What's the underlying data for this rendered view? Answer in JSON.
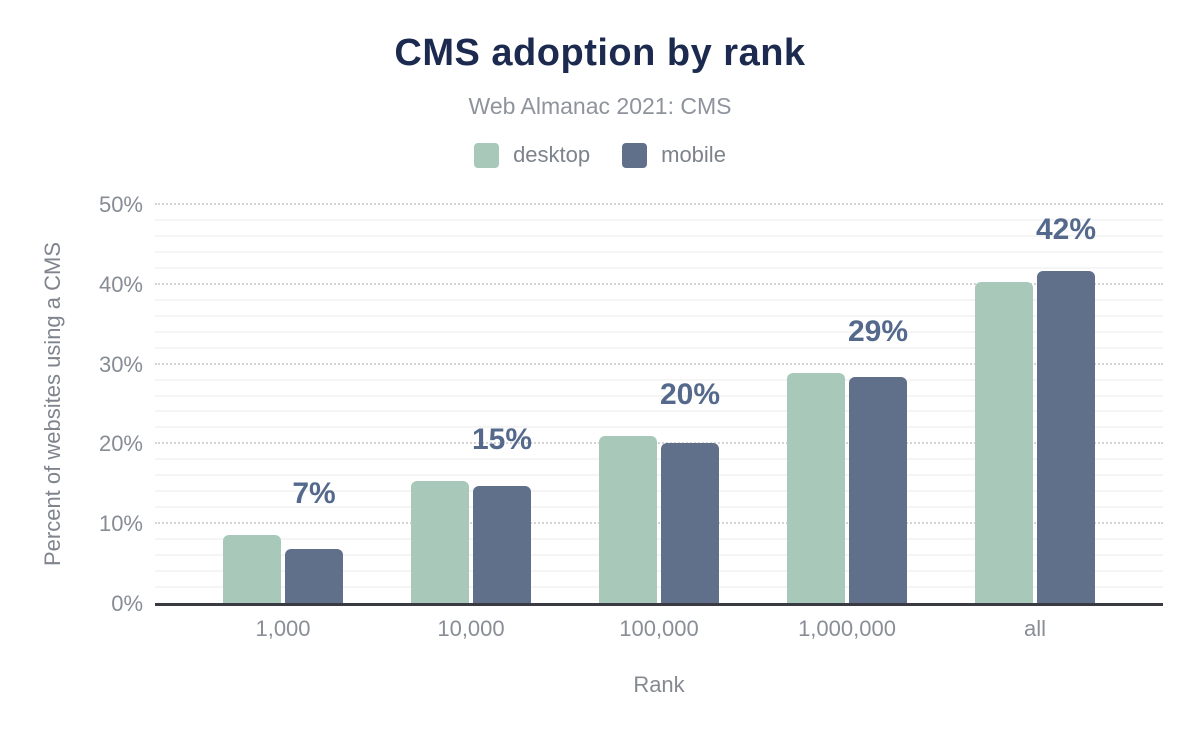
{
  "title": "CMS adoption by rank",
  "subtitle": "Web Almanac 2021: CMS",
  "legend": [
    {
      "label": "desktop",
      "color": "#a8c9ba"
    },
    {
      "label": "mobile",
      "color": "#60708a"
    }
  ],
  "chart_data": {
    "type": "bar",
    "title": "CMS adoption by rank",
    "subtitle": "Web Almanac 2021: CMS",
    "categories": [
      "1,000",
      "10,000",
      "100,000",
      "1,000,000",
      "all"
    ],
    "series": [
      {
        "name": "desktop",
        "color": "#a8c9ba",
        "values": [
          8.7,
          15.4,
          21.0,
          28.9,
          40.3
        ]
      },
      {
        "name": "mobile",
        "color": "#60708a",
        "values": [
          6.9,
          14.8,
          20.2,
          28.5,
          41.7
        ]
      }
    ],
    "data_labels": [
      "7%",
      "15%",
      "20%",
      "29%",
      "42%"
    ],
    "xlabel": "Rank",
    "ylabel": "Percent of websites using a CMS",
    "ylim": [
      0,
      50
    ],
    "yticks": [
      "0%",
      "10%",
      "20%",
      "30%",
      "40%",
      "50%"
    ],
    "ytick_step": 10,
    "minor_grid_step": 2,
    "legend_position": "top",
    "grid": "horizontal"
  },
  "colors": {
    "title": "#1b2a4e",
    "subtitle": "#8e939c",
    "axis_text": "#878c95",
    "data_label": "#55698c",
    "baseline": "#3a3a42",
    "major_grid": "#d4d4d4",
    "minor_grid": "#f5f5f5",
    "background": "#ffffff"
  }
}
